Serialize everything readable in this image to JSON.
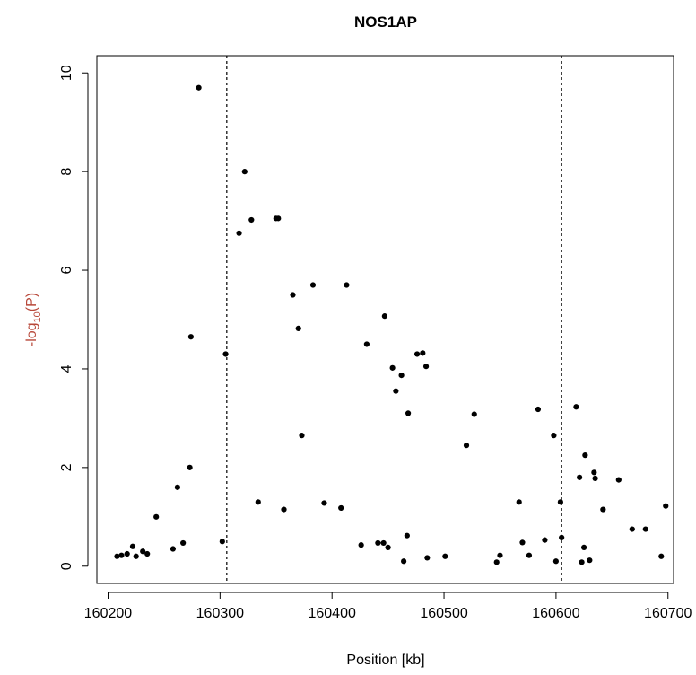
{
  "chart_data": {
    "type": "scatter",
    "title": "NOS1AP",
    "xlabel": "Position [kb]",
    "ylabel": {
      "prefix": "-log",
      "subscript": "10",
      "suffix": "(P)"
    },
    "xlim": [
      160190,
      160705
    ],
    "ylim": [
      -0.35,
      10.35
    ],
    "xticks": [
      160200,
      160300,
      160400,
      160500,
      160600,
      160700
    ],
    "yticks": [
      0,
      2,
      4,
      6,
      8,
      10
    ],
    "vlines": [
      160306,
      160605
    ],
    "grid": false,
    "colors": {
      "points": "#000000",
      "ylabel": "#b8483a",
      "axis": "#000000"
    },
    "points": [
      {
        "x": 160208,
        "y": 0.2
      },
      {
        "x": 160212,
        "y": 0.22
      },
      {
        "x": 160217,
        "y": 0.25
      },
      {
        "x": 160222,
        "y": 0.4
      },
      {
        "x": 160225,
        "y": 0.2
      },
      {
        "x": 160231,
        "y": 0.3
      },
      {
        "x": 160235,
        "y": 0.25
      },
      {
        "x": 160243,
        "y": 1.0
      },
      {
        "x": 160258,
        "y": 0.35
      },
      {
        "x": 160262,
        "y": 1.6
      },
      {
        "x": 160267,
        "y": 0.47
      },
      {
        "x": 160273,
        "y": 2.0
      },
      {
        "x": 160274,
        "y": 4.65
      },
      {
        "x": 160281,
        "y": 9.7
      },
      {
        "x": 160302,
        "y": 0.5
      },
      {
        "x": 160305,
        "y": 4.3
      },
      {
        "x": 160317,
        "y": 6.75
      },
      {
        "x": 160322,
        "y": 8.0
      },
      {
        "x": 160328,
        "y": 7.02
      },
      {
        "x": 160334,
        "y": 1.3
      },
      {
        "x": 160350,
        "y": 7.05
      },
      {
        "x": 160352,
        "y": 7.05
      },
      {
        "x": 160357,
        "y": 1.15
      },
      {
        "x": 160365,
        "y": 5.5
      },
      {
        "x": 160370,
        "y": 4.82
      },
      {
        "x": 160373,
        "y": 2.65
      },
      {
        "x": 160383,
        "y": 5.7
      },
      {
        "x": 160393,
        "y": 1.28
      },
      {
        "x": 160408,
        "y": 1.18
      },
      {
        "x": 160413,
        "y": 5.7
      },
      {
        "x": 160426,
        "y": 0.43
      },
      {
        "x": 160431,
        "y": 4.5
      },
      {
        "x": 160441,
        "y": 0.47
      },
      {
        "x": 160446,
        "y": 0.47
      },
      {
        "x": 160447,
        "y": 5.07
      },
      {
        "x": 160450,
        "y": 0.38
      },
      {
        "x": 160454,
        "y": 4.02
      },
      {
        "x": 160457,
        "y": 3.55
      },
      {
        "x": 160462,
        "y": 3.87
      },
      {
        "x": 160464,
        "y": 0.1
      },
      {
        "x": 160467,
        "y": 0.62
      },
      {
        "x": 160468,
        "y": 3.1
      },
      {
        "x": 160476,
        "y": 4.3
      },
      {
        "x": 160481,
        "y": 4.32
      },
      {
        "x": 160484,
        "y": 4.05
      },
      {
        "x": 160485,
        "y": 0.17
      },
      {
        "x": 160501,
        "y": 0.2
      },
      {
        "x": 160520,
        "y": 2.45
      },
      {
        "x": 160527,
        "y": 3.08
      },
      {
        "x": 160547,
        "y": 0.08
      },
      {
        "x": 160550,
        "y": 0.22
      },
      {
        "x": 160567,
        "y": 1.3
      },
      {
        "x": 160570,
        "y": 0.48
      },
      {
        "x": 160576,
        "y": 0.22
      },
      {
        "x": 160584,
        "y": 3.18
      },
      {
        "x": 160590,
        "y": 0.53
      },
      {
        "x": 160598,
        "y": 2.65
      },
      {
        "x": 160600,
        "y": 0.1
      },
      {
        "x": 160604,
        "y": 1.3
      },
      {
        "x": 160605,
        "y": 0.58
      },
      {
        "x": 160618,
        "y": 3.23
      },
      {
        "x": 160621,
        "y": 1.8
      },
      {
        "x": 160623,
        "y": 0.08
      },
      {
        "x": 160625,
        "y": 0.38
      },
      {
        "x": 160626,
        "y": 2.25
      },
      {
        "x": 160630,
        "y": 0.12
      },
      {
        "x": 160634,
        "y": 1.9
      },
      {
        "x": 160635,
        "y": 1.78
      },
      {
        "x": 160642,
        "y": 1.15
      },
      {
        "x": 160656,
        "y": 1.75
      },
      {
        "x": 160668,
        "y": 0.75
      },
      {
        "x": 160680,
        "y": 0.75
      },
      {
        "x": 160694,
        "y": 0.2
      },
      {
        "x": 160698,
        "y": 1.22
      }
    ]
  }
}
